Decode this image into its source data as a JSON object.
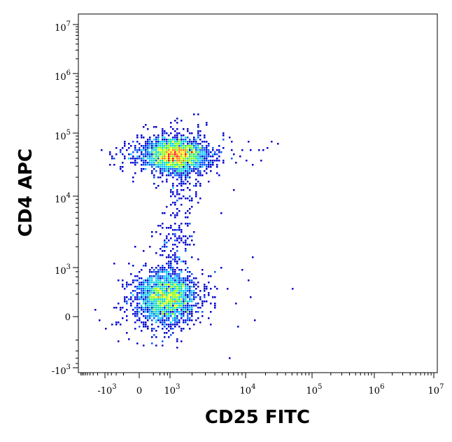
{
  "chart_data": {
    "type": "scatter",
    "title": "",
    "xlabel": "CD25 FITC",
    "ylabel": "CD4 APC",
    "x_scale": "biexponential",
    "y_scale": "biexponential",
    "xlim": [
      -10000,
      10000000
    ],
    "ylim": [
      -1000,
      10000000
    ],
    "grid": false,
    "legend": "none",
    "x_tick_labels": [
      {
        "base": "-10",
        "exp": "3",
        "value": -1000
      },
      {
        "base": "0",
        "exp": "",
        "value": 0
      },
      {
        "base": "10",
        "exp": "3",
        "value": 1000
      },
      {
        "base": "10",
        "exp": "4",
        "value": 10000
      },
      {
        "base": "10",
        "exp": "5",
        "value": 100000
      },
      {
        "base": "10",
        "exp": "6",
        "value": 1000000
      },
      {
        "base": "10",
        "exp": "7",
        "value": 10000000
      }
    ],
    "y_tick_labels": [
      {
        "base": "-10",
        "exp": "3",
        "value": -1000
      },
      {
        "base": "0",
        "exp": "",
        "value": 0
      },
      {
        "base": "10",
        "exp": "3",
        "value": 1000
      },
      {
        "base": "10",
        "exp": "4",
        "value": 10000
      },
      {
        "base": "10",
        "exp": "5",
        "value": 100000
      },
      {
        "base": "10",
        "exp": "6",
        "value": 1000000
      },
      {
        "base": "10",
        "exp": "7",
        "value": 10000000
      }
    ],
    "density_colormap": [
      "#0000cc",
      "#0055ff",
      "#00c8ff",
      "#00e0a0",
      "#7fff00",
      "#ffff00",
      "#ff8000",
      "#ff0000"
    ],
    "populations": [
      {
        "center": [
          1200,
          45000
        ],
        "spread": [
          0.55,
          0.28
        ],
        "points": 2600
      },
      {
        "center": [
          700,
          150
        ],
        "spread": [
          0.5,
          0.45
        ],
        "points": 2300
      }
    ],
    "points": [
      [
        50000,
        290
      ],
      [
        25000,
        70000
      ],
      [
        30000,
        65000
      ],
      [
        22000,
        60000
      ],
      [
        18000,
        55000
      ],
      [
        13000,
        1400
      ],
      [
        9000,
        900
      ],
      [
        11000,
        500
      ],
      [
        12000,
        150
      ],
      [
        14000,
        -20
      ],
      [
        6000,
        300
      ],
      [
        7500,
        80
      ],
      [
        8000,
        -60
      ],
      [
        5000,
        6000
      ],
      [
        7000,
        12000
      ]
    ]
  }
}
